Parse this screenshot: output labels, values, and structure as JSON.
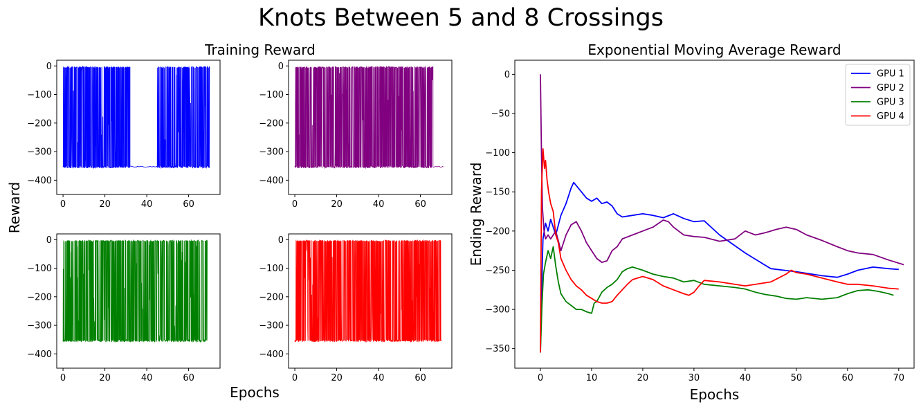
{
  "figure": {
    "title": "Knots Between 5 and 8 Crossings",
    "left_title": "Training Reward",
    "left_ylabel": "Reward",
    "left_xlabel": "Epochs"
  },
  "chart_data": [
    {
      "type": "line",
      "title": "",
      "series": [
        {
          "name": "GPU 1",
          "color": "#0000ff",
          "pattern": "dense oscillation between about -355 and 0 for x 0-32, nearly flat near -355 for x 32-45, dense oscillation again for x 45-70"
        }
      ],
      "xlim": [
        -3,
        75
      ],
      "ylim": [
        -450,
        20
      ],
      "xticks": [
        0,
        20,
        40,
        60
      ],
      "yticks": [
        0,
        -100,
        -200,
        -300,
        -400
      ]
    },
    {
      "type": "line",
      "title": "",
      "series": [
        {
          "name": "GPU 2",
          "color": "#800080",
          "pattern": "dense oscillation between about -355 and 0 for x 0-66, flat near -355 to x 71"
        }
      ],
      "xlim": [
        -3,
        75
      ],
      "ylim": [
        -450,
        20
      ],
      "xticks": [
        0,
        20,
        40,
        60
      ],
      "yticks": [
        0,
        -100,
        -200,
        -300,
        -400
      ]
    },
    {
      "type": "line",
      "title": "",
      "series": [
        {
          "name": "GPU 3",
          "color": "#008000",
          "pattern": "dense oscillation between about -355 and 0 for x 0-69"
        }
      ],
      "xlim": [
        -3,
        75
      ],
      "ylim": [
        -450,
        20
      ],
      "xticks": [
        0,
        20,
        40,
        60
      ],
      "yticks": [
        0,
        -100,
        -200,
        -300,
        -400
      ]
    },
    {
      "type": "line",
      "title": "",
      "series": [
        {
          "name": "GPU 4",
          "color": "#ff0000",
          "pattern": "dense oscillation between about -355 and 0 for x 0-70"
        }
      ],
      "xlim": [
        -3,
        75
      ],
      "ylim": [
        -450,
        20
      ],
      "xticks": [
        0,
        20,
        40,
        60
      ],
      "yticks": [
        0,
        -100,
        -200,
        -300,
        -400
      ]
    },
    {
      "type": "line",
      "title": "Exponential Moving Average Reward",
      "xlabel": "Epochs",
      "ylabel": "Ending Reward",
      "xlim": [
        -5,
        73
      ],
      "ylim": [
        -375,
        18
      ],
      "xticks": [
        0,
        10,
        20,
        30,
        40,
        50,
        60,
        70
      ],
      "yticks": [
        0,
        -50,
        -100,
        -150,
        -200,
        -250,
        -300,
        -350
      ],
      "legend": "top-right",
      "series": [
        {
          "name": "GPU 1",
          "color": "#0000ff",
          "x": [
            0,
            0.2,
            0.5,
            1,
            1.5,
            2,
            2.5,
            3,
            4,
            5,
            6,
            6.5,
            7,
            8,
            9,
            10,
            11,
            12,
            13,
            14,
            15,
            16,
            18,
            20,
            22,
            24,
            26,
            28,
            30,
            32,
            35,
            40,
            45,
            50,
            55,
            58,
            60,
            62,
            65,
            68,
            70
          ],
          "y": [
            -355,
            -280,
            -210,
            -190,
            -200,
            -185,
            -195,
            -205,
            -180,
            -165,
            -145,
            -138,
            -142,
            -150,
            -158,
            -162,
            -158,
            -165,
            -163,
            -168,
            -178,
            -182,
            -180,
            -178,
            -180,
            -183,
            -178,
            -184,
            -188,
            -187,
            -205,
            -228,
            -248,
            -252,
            -257,
            -259,
            -255,
            -250,
            -246,
            -248,
            -249
          ]
        },
        {
          "name": "GPU 2",
          "color": "#800080",
          "x": [
            0,
            0.2,
            0.4,
            0.7,
            1,
            1.5,
            2,
            3,
            4,
            5,
            6,
            7,
            8,
            9,
            10,
            11,
            12,
            13,
            14,
            15,
            16,
            18,
            20,
            22,
            24,
            25,
            26,
            28,
            30,
            32,
            35,
            38,
            40,
            42,
            44,
            46,
            48,
            50,
            52,
            55,
            58,
            60,
            62,
            65,
            68,
            71
          ],
          "y": [
            0,
            -100,
            -170,
            -200,
            -210,
            -205,
            -210,
            -200,
            -225,
            -205,
            -192,
            -188,
            -200,
            -215,
            -225,
            -235,
            -240,
            -238,
            -225,
            -220,
            -210,
            -205,
            -200,
            -195,
            -186,
            -188,
            -195,
            -205,
            -207,
            -208,
            -213,
            -210,
            -200,
            -205,
            -202,
            -198,
            -195,
            -198,
            -205,
            -212,
            -220,
            -225,
            -228,
            -230,
            -237,
            -243
          ]
        },
        {
          "name": "GPU 3",
          "color": "#008000",
          "x": [
            0,
            0.3,
            0.6,
            1,
            1.5,
            2,
            2.5,
            3,
            3.5,
            4,
            5,
            6,
            7,
            8,
            9,
            10,
            10.5,
            11,
            12,
            13,
            14,
            15,
            16,
            17,
            18,
            20,
            22,
            24,
            26,
            28,
            30,
            32,
            35,
            38,
            40,
            42,
            44,
            46,
            48,
            50,
            52,
            55,
            58,
            60,
            62,
            64,
            66,
            68,
            69
          ],
          "y": [
            -355,
            -295,
            -255,
            -240,
            -225,
            -235,
            -220,
            -245,
            -265,
            -280,
            -290,
            -295,
            -300,
            -300,
            -303,
            -305,
            -292,
            -290,
            -278,
            -272,
            -268,
            -262,
            -252,
            -248,
            -246,
            -250,
            -255,
            -258,
            -260,
            -265,
            -263,
            -268,
            -270,
            -272,
            -274,
            -278,
            -281,
            -283,
            -286,
            -287,
            -285,
            -287,
            -285,
            -280,
            -276,
            -275,
            -277,
            -280,
            -282
          ]
        },
        {
          "name": "GPU 4",
          "color": "#ff0000",
          "x": [
            0,
            0.2,
            0.5,
            0.8,
            1,
            1.3,
            1.6,
            2,
            2.5,
            3,
            3.5,
            4,
            5,
            6,
            7,
            8,
            9,
            10,
            11,
            12,
            13,
            14,
            15,
            16,
            17,
            18,
            20,
            22,
            24,
            26,
            28,
            29,
            30,
            31,
            32,
            35,
            40,
            45,
            48,
            49,
            50,
            52,
            55,
            58,
            60,
            62,
            65,
            68,
            70
          ],
          "y": [
            -355,
            -150,
            -95,
            -120,
            -110,
            -135,
            -150,
            -165,
            -175,
            -205,
            -215,
            -235,
            -250,
            -262,
            -270,
            -275,
            -282,
            -286,
            -290,
            -292,
            -292,
            -290,
            -282,
            -275,
            -268,
            -262,
            -258,
            -262,
            -270,
            -275,
            -280,
            -282,
            -278,
            -270,
            -263,
            -265,
            -270,
            -265,
            -255,
            -250,
            -253,
            -255,
            -260,
            -265,
            -268,
            -268,
            -270,
            -273,
            -274
          ]
        }
      ]
    }
  ]
}
